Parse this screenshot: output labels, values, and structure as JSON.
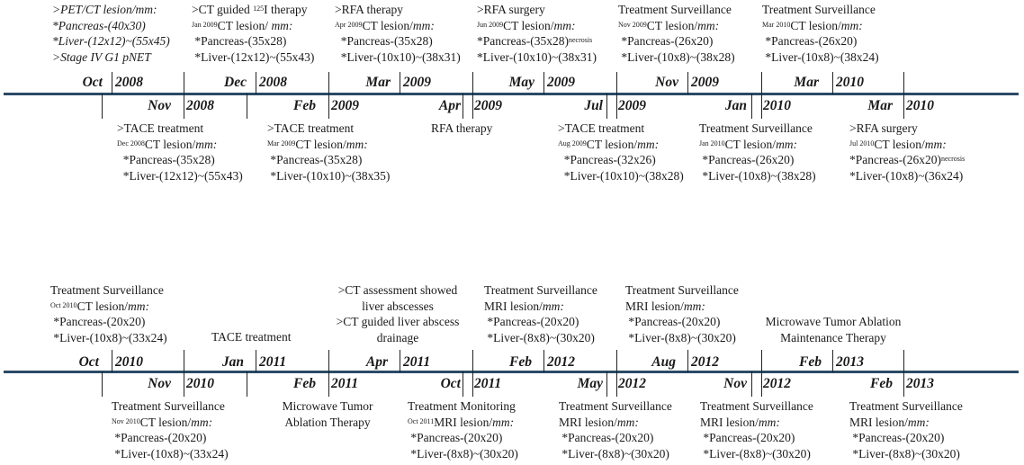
{
  "row1": {
    "dates": [
      {
        "month": "Oct",
        "year": "2008"
      },
      {
        "month": "Nov",
        "year": "2008"
      },
      {
        "month": "Dec",
        "year": "2008"
      },
      {
        "month": "Feb",
        "year": "2009"
      },
      {
        "month": "Mar",
        "year": "2009"
      },
      {
        "month": "Apr",
        "year": "2009"
      },
      {
        "month": "May",
        "year": "2009"
      },
      {
        "month": "Jul",
        "year": "2009"
      },
      {
        "month": "Nov",
        "year": "2009"
      },
      {
        "month": "Jan",
        "year": "2010"
      },
      {
        "month": "Mar",
        "year": "2010"
      },
      {
        "month": "Mar",
        "year": "2010"
      }
    ],
    "top_events": [
      {
        "title": ">PET/CT lesion/mm:",
        "line1": "*Pancreas-(40x30)",
        "line2": "*Liver-(12x12)~(55x45)",
        "line3": ">Stage IV G1 pNET"
      },
      {
        "title_a": ">CT guided ",
        "title_sup": "125",
        "title_b": "I therapy",
        "date_sup": "Jan 2009",
        "ct_label": "CT lesion/ ",
        "ct_unit": "mm:",
        "line1": "*Pancreas-(35x28)",
        "line2": "*Liver-(12x12)~(55x43)"
      },
      {
        "title": ">RFA therapy",
        "date_sup": "Apr 2009",
        "ct_label": "CT lesion/",
        "ct_unit": "mm:",
        "line1": "*Pancreas-(35x28)",
        "line2": "*Liver-(10x10)~(38x31)"
      },
      {
        "title": ">RFA surgery",
        "date_sup": "Jun 2009",
        "ct_label": "CT lesion/",
        "ct_unit": "mm:",
        "line1": "*Pancreas-(35x28)",
        "line1_sup": "necrosis",
        "line2": "*Liver-(10x10)~(38x31)"
      },
      {
        "title": "Treatment Surveillance",
        "date_sup": "Nov 2009",
        "ct_label": "CT lesion/",
        "ct_unit": "mm:",
        "line1": "*Pancreas-(26x20)",
        "line2": "*Liver-(10x8)~(38x28)"
      },
      {
        "title": "Treatment Surveillance",
        "date_sup": "Mar 2010",
        "ct_label": "CT lesion/",
        "ct_unit": "mm:",
        "line1": "*Pancreas-(26x20)",
        "line2": "*Liver-(10x8)~(38x24)"
      }
    ],
    "bottom_events": [
      {
        "title": ">TACE treatment",
        "date_sup": "Dec 2008",
        "ct_label": "CT lesion/",
        "ct_unit": "mm:",
        "line1": "*Pancreas-(35x28)",
        "line2": "*Liver-(12x12)~(55x43)"
      },
      {
        "title": ">TACE treatment",
        "date_sup": "Mar 2009",
        "ct_label": "CT lesion/",
        "ct_unit": "mm:",
        "line1": "*Pancreas-(35x28)",
        "line2": "*Liver-(10x10)~(38x35)"
      },
      {
        "title": "RFA therapy"
      },
      {
        "title": ">TACE treatment",
        "date_sup": "Aug 2009",
        "ct_label": "CT lesion/",
        "ct_unit": "mm:",
        "line1": "*Pancreas-(32x26)",
        "line2": "*Liver-(10x10)~(38x28)"
      },
      {
        "title": "Treatment Surveillance",
        "date_sup": "Jan 2010",
        "ct_label": "CT lesion/",
        "ct_unit": "mm:",
        "line1": "*Pancreas-(26x20)",
        "line2": "*Liver-(10x8)~(38x28)"
      },
      {
        "title": ">RFA surgery",
        "date_sup": "Jul 2010",
        "ct_label": "CT lesion/",
        "ct_unit": "mm:",
        "line1": "*Pancreas-(26x20)",
        "line1_sup": "necrosis",
        "line2": "*Liver-(10x8)~(36x24)"
      }
    ]
  },
  "row2": {
    "dates": [
      {
        "month": "Oct",
        "year": "2010"
      },
      {
        "month": "Nov",
        "year": "2010"
      },
      {
        "month": "Jan",
        "year": "2011"
      },
      {
        "month": "Feb",
        "year": "2011"
      },
      {
        "month": "Apr",
        "year": "2011"
      },
      {
        "month": "Oct",
        "year": "2011"
      },
      {
        "month": "Feb",
        "year": "2012"
      },
      {
        "month": "May",
        "year": "2012"
      },
      {
        "month": "Aug",
        "year": "2012"
      },
      {
        "month": "Nov",
        "year": "2012"
      },
      {
        "month": "Feb",
        "year": "2013"
      },
      {
        "month": "Feb",
        "year": "2013"
      }
    ],
    "top_events": [
      {
        "title": "Treatment Surveillance",
        "date_sup": "Oct 2010",
        "ct_label": "CT lesion/",
        "ct_unit": "mm:",
        "line1": "*Pancreas-(20x20)",
        "line2": "*Liver-(10x8)~(33x24)"
      },
      {
        "title": "TACE treatment"
      },
      {
        "title": ">CT assessment showed",
        "title2": "liver abscesses",
        "title3": ">CT guided liver abscess",
        "title4": "drainage"
      },
      {
        "title": "Treatment Surveillance",
        "mri_label": "MRI lesion/",
        "mri_unit": "mm:",
        "line1": "*Pancreas-(20x20)",
        "line2": "*Liver-(8x8)~(30x20)"
      },
      {
        "title": "Treatment Surveillance",
        "mri_label": "MRI lesion/",
        "mri_unit": "mm:",
        "line1": "*Pancreas-(20x20)",
        "line2": "*Liver-(8x8)~(30x20)"
      },
      {
        "title": "Microwave Tumor Ablation",
        "title2": "Maintenance Therapy"
      }
    ],
    "bottom_events": [
      {
        "title": "Treatment Surveillance",
        "date_sup": "Nov 2010",
        "ct_label": "CT lesion/",
        "ct_unit": "mm:",
        "line1": "*Pancreas-(20x20)",
        "line2": "*Liver-(10x8)~(33x24)"
      },
      {
        "title": "Microwave Tumor",
        "title2": "Ablation Therapy"
      },
      {
        "title": "Treatment Monitoring",
        "date_sup": "Oct 2011",
        "mri_label": "MRI lesion/",
        "mri_unit": "mm:",
        "line1": "*Pancreas-(20x20)",
        "line2": "*Liver-(8x8)~(30x20)"
      },
      {
        "title": "Treatment Surveillance",
        "mri_label": "MRI lesion/",
        "mri_unit": "mm:",
        "line1": "*Pancreas-(20x20)",
        "line2": "*Liver-(8x8)~(30x20)"
      },
      {
        "title": "Treatment Surveillance",
        "mri_label": "MRI lesion/",
        "mri_unit": "mm:",
        "line1": "*Pancreas-(20x20)",
        "line2": "*Liver-(8x8)~(30x20)"
      },
      {
        "title": "Treatment Surveillance",
        "mri_label": "MRI lesion/",
        "mri_unit": "mm:",
        "line1": "*Pancreas-(20x20)",
        "line2": "*Liver-(8x8)~(30x20)"
      }
    ]
  }
}
